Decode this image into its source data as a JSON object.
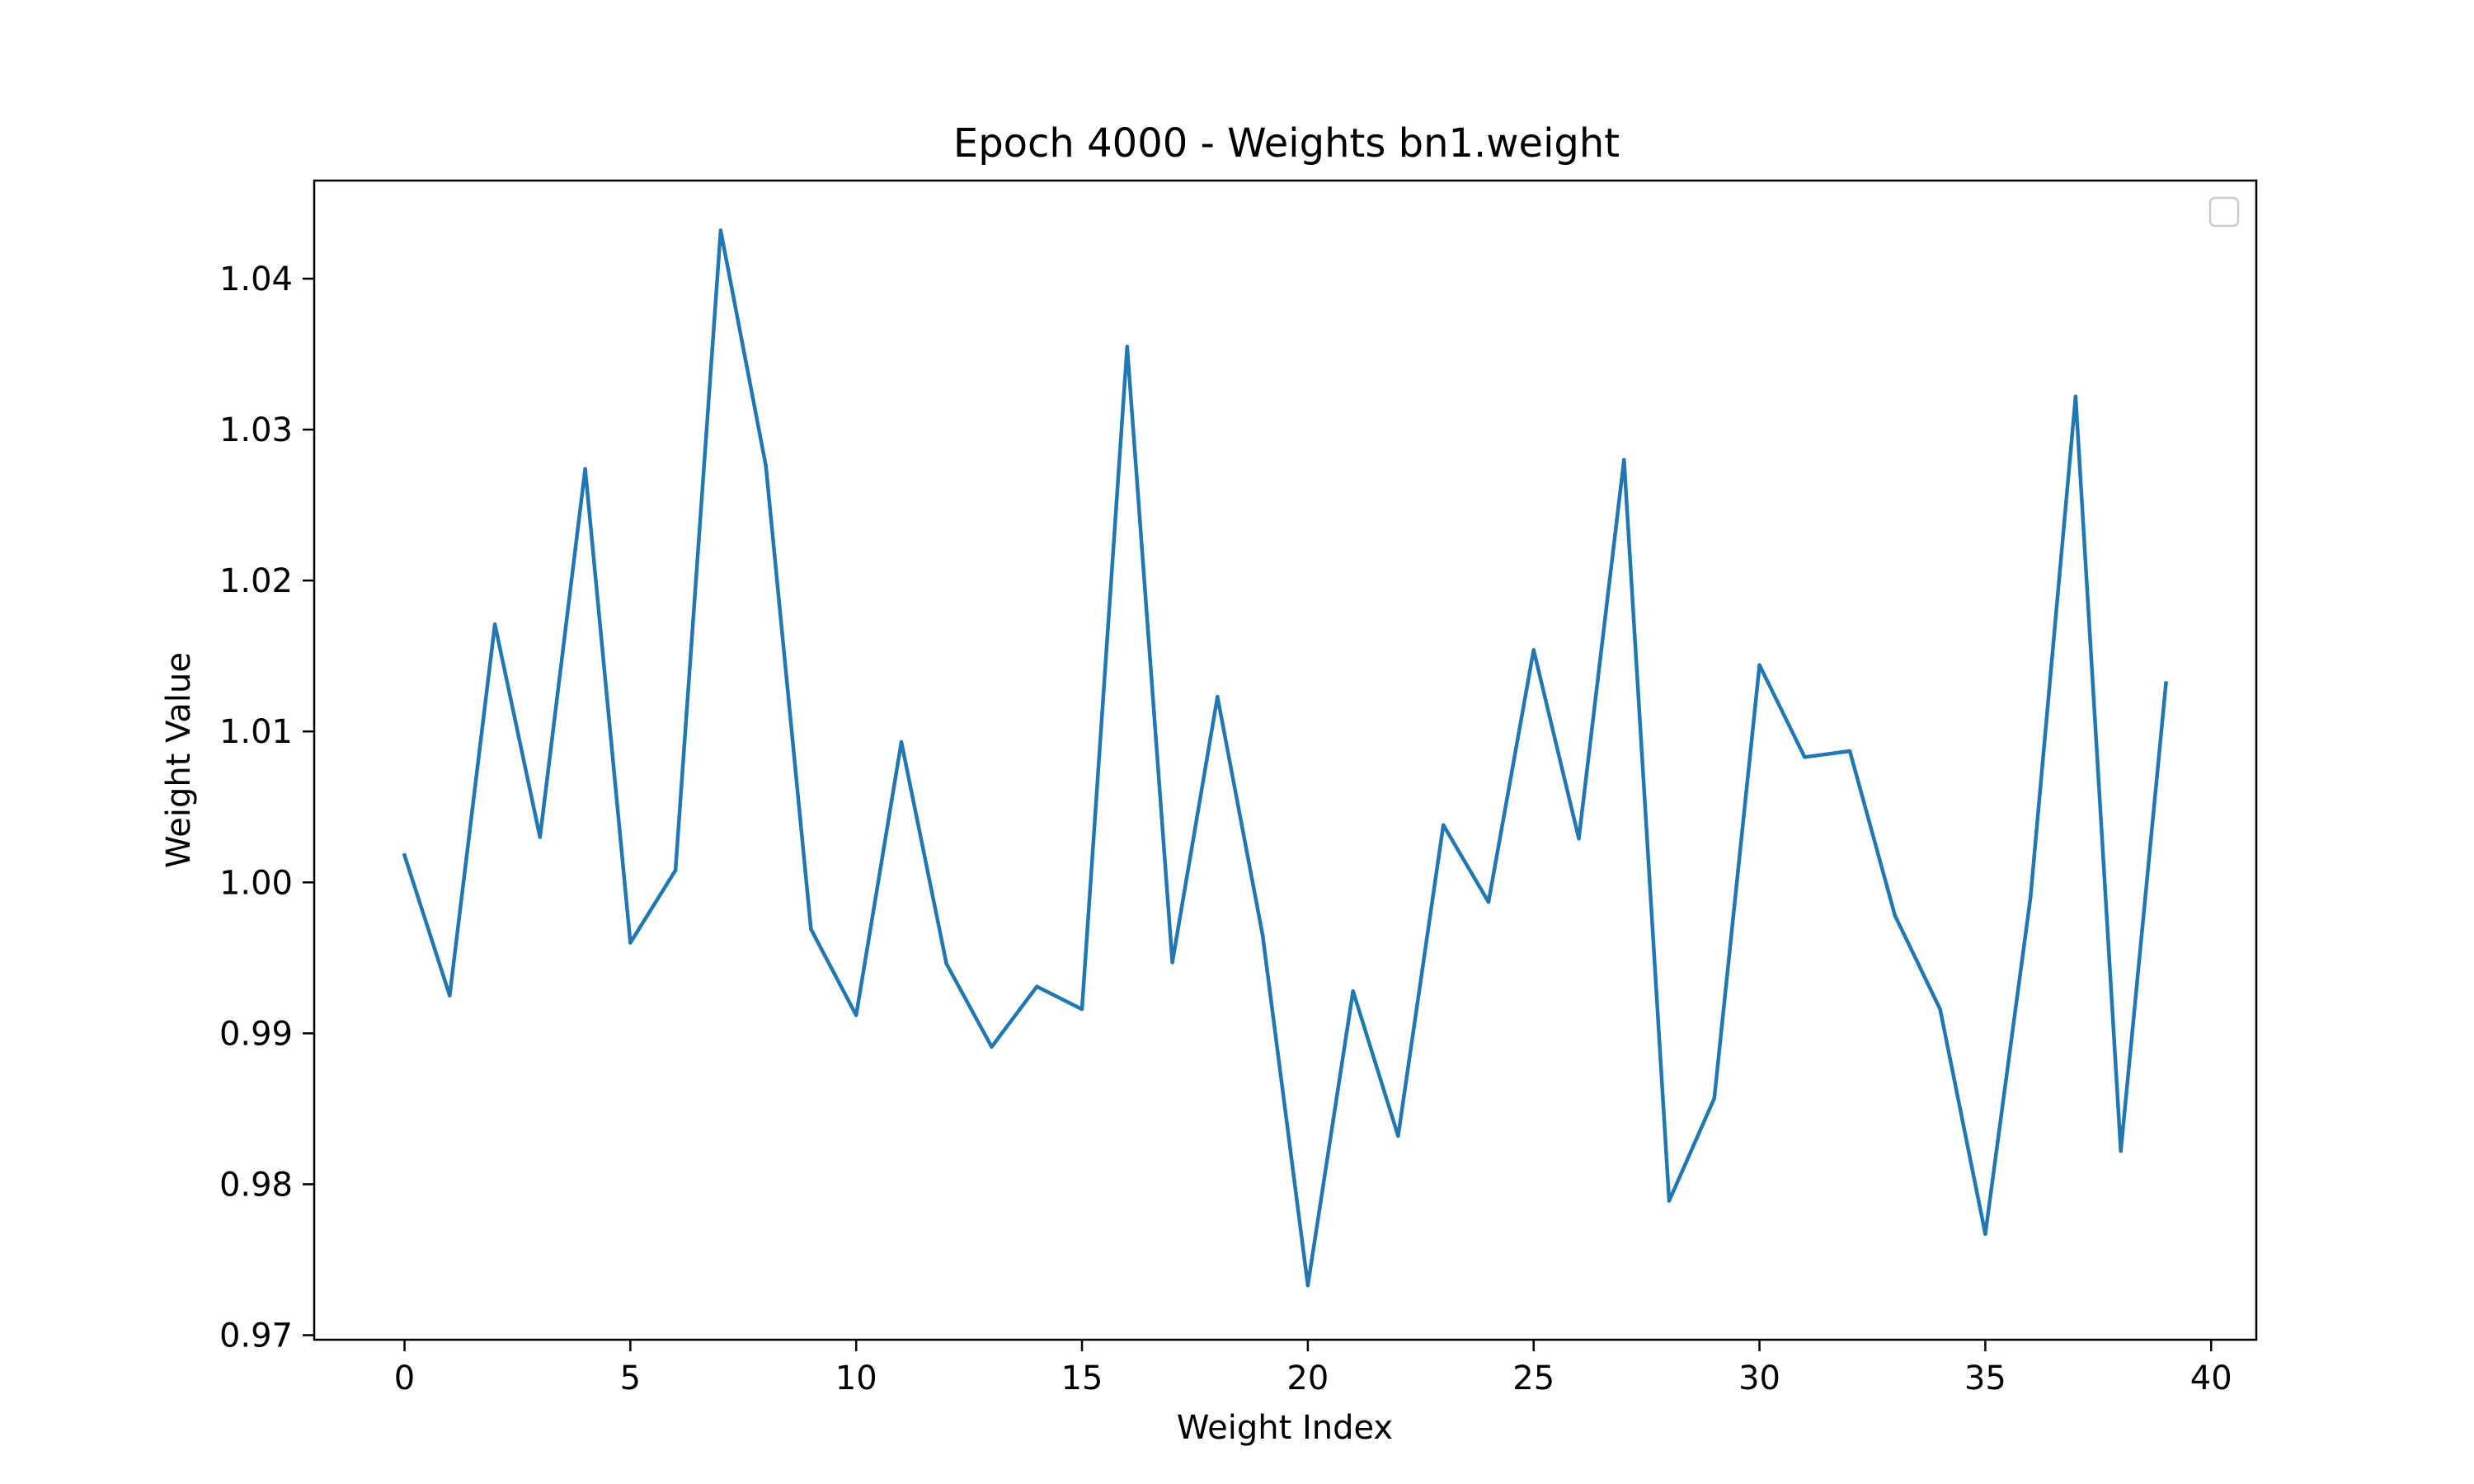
{
  "chart_data": {
    "type": "line",
    "title": "Epoch 4000 - Weights bn1.weight",
    "xlabel": "Weight Index",
    "ylabel": "Weight Value",
    "xlim": [
      -2,
      41
    ],
    "ylim": [
      0.9697,
      1.0465
    ],
    "xticks": [
      0,
      5,
      10,
      15,
      20,
      25,
      30,
      35,
      40
    ],
    "xtick_labels": [
      "0",
      "5",
      "10",
      "15",
      "20",
      "25",
      "30",
      "35",
      "40"
    ],
    "yticks": [
      0.97,
      0.98,
      0.99,
      1.0,
      1.01,
      1.02,
      1.03,
      1.04
    ],
    "ytick_labels": [
      "0.97",
      "0.98",
      "0.99",
      "1.00",
      "1.01",
      "1.02",
      "1.03",
      "1.04"
    ],
    "grid": false,
    "legend": {
      "placement": "top-right",
      "entries": []
    },
    "series": [
      {
        "color": "#1f77b4",
        "x": [
          0,
          1,
          2,
          3,
          4,
          5,
          6,
          7,
          8,
          9,
          10,
          11,
          12,
          13,
          14,
          15,
          16,
          17,
          18,
          19,
          20,
          21,
          22,
          23,
          24,
          25,
          26,
          27,
          28,
          29,
          30,
          31,
          32,
          33,
          34,
          35,
          36,
          37,
          38,
          39
        ],
        "values": [
          1.0018,
          0.9925,
          1.0171,
          1.003,
          1.0274,
          0.996,
          1.0008,
          1.0432,
          1.0276,
          0.9969,
          0.9912,
          1.0093,
          0.9946,
          0.9891,
          0.9931,
          0.9916,
          1.0355,
          0.9947,
          1.0123,
          0.9965,
          0.9733,
          0.9928,
          0.9832,
          1.0038,
          0.9987,
          1.0154,
          1.0029,
          1.028,
          0.9789,
          0.9857,
          1.0144,
          1.0083,
          1.0087,
          0.9978,
          0.9916,
          0.9767,
          0.999,
          1.0322,
          0.9822,
          1.0132
        ]
      }
    ]
  }
}
